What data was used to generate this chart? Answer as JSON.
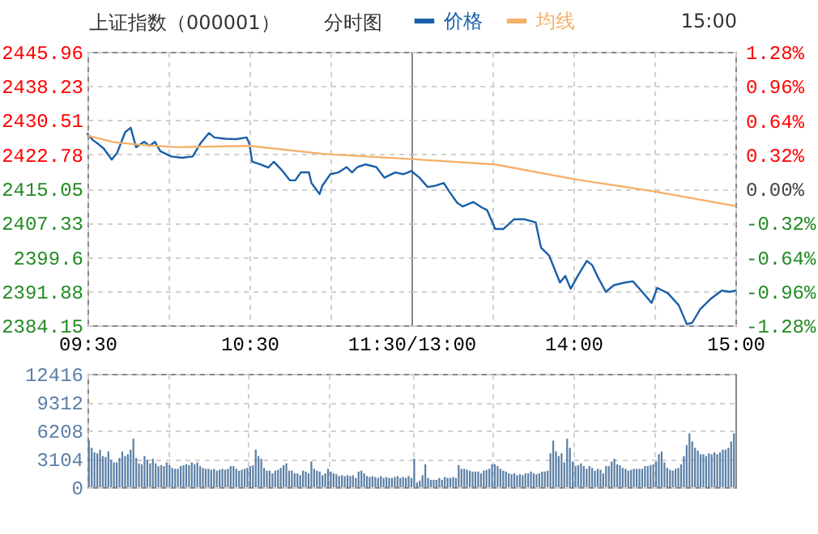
{
  "chart_data": [
    {
      "type": "line",
      "title": "上证指数（000001）",
      "subtitle": "分时图",
      "annotations": [
        "15:00"
      ],
      "legend": "top",
      "grid": true,
      "xlim": [
        9.5,
        11.5
      ],
      "xticks": [
        {
          "value": 9.5,
          "label": "09:30"
        },
        {
          "value": 10,
          "label": null
        },
        {
          "value": 10.5,
          "label": "10:30"
        },
        {
          "value": 11,
          "label": null
        },
        {
          "value": 11.5,
          "label": "11:30/13:00"
        }
      ],
      "ylim": [
        2384.15,
        2445.96
      ],
      "yticks": [
        2384.15,
        2391.88,
        2399.6,
        2407.33,
        2415.05,
        2422.78,
        2430.51,
        2438.23,
        2445.96
      ],
      "series": [
        {
          "name": "价格",
          "color": "#1a5fa8",
          "x": [
            9.5,
            9.533,
            9.567,
            9.6,
            9.65,
            9.683,
            9.733,
            9.767,
            9.8,
            9.85,
            9.883,
            9.917,
            9.95,
            10.017,
            10.083,
            10.15,
            10.2,
            10.25,
            10.283,
            10.35,
            10.417,
            10.483,
            10.5,
            10.517,
            10.567,
            10.617,
            10.65,
            10.7,
            10.75,
            10.783,
            10.817,
            10.867,
            10.883,
            10.933,
            10.95,
            11,
            11.05,
            11.1,
            11.133,
            11.167,
            11.217,
            11.283,
            11.333,
            11.4,
            11.45,
            11.5
          ],
          "values": [
            2427.4,
            2426.0,
            2425.1,
            2424.1,
            2421.6,
            2423.1,
            2427.8,
            2428.8,
            2424.4,
            2425.6,
            2424.7,
            2425.6,
            2423.5,
            2422.3,
            2422.0,
            2422.3,
            2425.4,
            2427.6,
            2426.6,
            2426.3,
            2426.2,
            2426.6,
            2425.1,
            2421.1,
            2420.5,
            2419.8,
            2421.1,
            2419.2,
            2416.9,
            2416.9,
            2418.7,
            2418.7,
            2416.3,
            2413.8,
            2415.7,
            2418.3,
            2418.7,
            2419.9,
            2418.7,
            2419.9,
            2420.5,
            2419.9,
            2417.5,
            2418.7,
            2418.3,
            2419.0
          ]
        },
        {
          "name": "均线",
          "color": "#f5b06a",
          "x": [
            9.5,
            9.667,
            9.833,
            10.05,
            10.5,
            10.95,
            11.5
          ],
          "values": [
            2427.0,
            2425.5,
            2424.9,
            2424.4,
            2424.7,
            2422.9,
            2421.7
          ]
        }
      ]
    },
    {
      "type": "line",
      "grid": true,
      "tick_labels": "x",
      "xlim": [
        13,
        15
      ],
      "xticks": [
        {
          "value": 13.5,
          "label": null
        },
        {
          "value": 14,
          "label": "14:00"
        },
        {
          "value": 14.5,
          "label": null
        },
        {
          "value": 15,
          "label": "15:00"
        }
      ],
      "ylim": [
        2384.15,
        2445.96
      ],
      "yticks": [
        2384.15,
        2391.88,
        2399.6,
        2407.33,
        2415.05,
        2422.78,
        2430.51,
        2438.23,
        2445.96
      ],
      "y2lim": [
        -1.28,
        1.28
      ],
      "y2ticks": [
        {
          "value": -1.28,
          "label": "-1.28%"
        },
        {
          "value": -0.96,
          "label": "-0.96%"
        },
        {
          "value": -0.64,
          "label": "-0.64%"
        },
        {
          "value": -0.32,
          "label": "-0.32%"
        },
        {
          "value": 0,
          "label": "0.00%"
        },
        {
          "value": 0.32,
          "label": "0.32%"
        },
        {
          "value": 0.64,
          "label": "0.64%"
        },
        {
          "value": 0.96,
          "label": "0.96%"
        },
        {
          "value": 1.28,
          "label": "1.28%"
        }
      ],
      "series": [
        {
          "color": "#1a5fa8",
          "x": [
            13,
            13.05,
            13.1,
            13.15,
            13.2,
            13.233,
            13.283,
            13.317,
            13.383,
            13.433,
            13.467,
            13.517,
            13.567,
            13.633,
            13.7,
            13.767,
            13.8,
            13.85,
            13.883,
            13.917,
            13.95,
            13.983,
            14.033,
            14.083,
            14.117,
            14.15,
            14.2,
            14.25,
            14.317,
            14.367,
            14.417,
            14.483,
            14.517,
            14.583,
            14.65,
            14.7,
            14.733,
            14.783,
            14.85,
            14.917,
            14.967,
            15
          ],
          "values": [
            2419.0,
            2417.5,
            2415.4,
            2415.7,
            2416.3,
            2414.4,
            2411.8,
            2411.0,
            2412.0,
            2410.8,
            2410.2,
            2405.9,
            2405.9,
            2408.1,
            2408.1,
            2407.4,
            2401.7,
            2399.9,
            2396.9,
            2393.8,
            2395.3,
            2392.4,
            2395.7,
            2398.7,
            2397.7,
            2395.1,
            2391.7,
            2393.2,
            2393.8,
            2394.1,
            2392.0,
            2389.2,
            2392.6,
            2391.4,
            2388.7,
            2384.4,
            2384.7,
            2387.8,
            2390.2,
            2392.0,
            2391.7,
            2392.0
          ]
        },
        {
          "color": "#f5b06a",
          "x": [
            13,
            13.517,
            14.017,
            14.5,
            15
          ],
          "values": [
            2421.7,
            2420.5,
            2417.1,
            2414.4,
            2411.1
          ]
        }
      ]
    },
    {
      "type": "bar",
      "color": "#5b7fa6",
      "grid": true,
      "tick_labels": "y",
      "ylim": [
        0,
        12416
      ],
      "yticks": [
        0,
        3104,
        6208,
        9312,
        12416
      ],
      "values": [
        5100,
        4300,
        3800,
        3700,
        4100,
        3400,
        3300,
        3900,
        3000,
        2700,
        2700,
        3200,
        3900,
        3400,
        3600,
        4100,
        5300,
        3200,
        2600,
        2500,
        3400,
        3000,
        2600,
        3100,
        2600,
        2300,
        2400,
        2300,
        2700,
        2400,
        2100,
        2000,
        2000,
        2300,
        2400,
        2500,
        2400,
        2700,
        2500,
        2700,
        2300,
        2100,
        2000,
        2000,
        1900,
        2000,
        1800,
        1900,
        2000,
        1900,
        2000,
        2300,
        2300,
        2000,
        1800,
        1900,
        2000,
        2100,
        2300,
        2400,
        4100,
        3400,
        3100,
        2100,
        1800,
        1800,
        1500,
        1800,
        1900,
        2100,
        2400,
        2600,
        1800,
        1800,
        1500,
        1500,
        1300,
        1800,
        1700,
        1500,
        2800,
        2000,
        1800,
        1700,
        1300,
        1500,
        2000,
        1700,
        1500,
        1400,
        1200,
        1300,
        1200,
        1300,
        1200,
        1300,
        1000,
        1700,
        1800,
        1500,
        1200,
        1100,
        1200,
        1100,
        1000,
        1200,
        1000,
        1100,
        1000,
        1000,
        1100,
        1200,
        1000,
        1100,
        1000,
        1200,
        1000,
        3100,
        500,
        700,
        1300,
        2500,
        1000,
        800,
        800,
        800,
        1000,
        800,
        1100,
        1000,
        1000,
        1100,
        1000,
        2400,
        2000,
        2000,
        1900,
        1800,
        1700,
        1700,
        1700,
        1500,
        1800,
        1900,
        2000,
        2500,
        2500,
        2300,
        2000,
        1800,
        1700,
        1500,
        1400,
        1500,
        1300,
        1400,
        1300,
        1500,
        1500,
        1700,
        1500,
        1400,
        1500,
        1700,
        1700,
        1800,
        3700,
        5100,
        3900,
        3400,
        3700,
        2700,
        5300,
        4300,
        2800,
        2300,
        2400,
        2600,
        2300,
        2000,
        2300,
        2100,
        1800,
        2000,
        1900,
        1500,
        2300,
        2300,
        2800,
        3100,
        2500,
        2400,
        2100,
        2000,
        1800,
        1900,
        2000,
        2000,
        2000,
        2000,
        2300,
        2300,
        2400,
        2500,
        2800,
        3600,
        3900,
        2700,
        2100,
        1900,
        1800,
        2000,
        2100,
        2500,
        3400,
        4600,
        5900,
        5000,
        4300,
        4000,
        3600,
        3600,
        3400,
        3700,
        3600,
        3800,
        3600,
        3800,
        4100,
        4100,
        4300,
        5000,
        5900
      ],
      "categories": [
        null,
        null,
        null,
        null,
        null,
        null,
        null,
        null,
        null,
        null,
        null,
        null,
        null,
        null,
        null,
        null,
        null,
        null,
        null,
        null,
        null,
        null,
        null,
        null,
        null,
        null,
        null,
        null,
        null,
        null,
        null,
        null,
        null,
        null,
        null,
        null,
        null,
        null,
        null,
        null,
        null,
        null,
        null,
        null,
        null,
        null,
        null,
        null,
        null,
        null,
        null,
        null,
        null,
        null,
        null,
        null,
        null,
        null,
        null,
        null,
        null,
        null,
        null,
        null,
        null,
        null,
        null,
        null,
        null,
        null,
        null,
        null,
        null,
        null,
        null,
        null,
        null,
        null,
        null,
        null,
        null,
        null,
        null,
        null,
        null,
        null,
        null,
        null,
        null,
        null,
        null,
        null,
        null,
        null,
        null,
        null,
        null,
        null,
        null,
        null,
        null,
        null,
        null,
        null,
        null,
        null,
        null,
        null,
        null,
        null,
        null,
        null,
        null,
        null,
        null,
        null,
        null,
        null,
        null,
        null,
        null,
        null,
        null,
        null,
        null,
        null,
        null,
        null,
        null,
        null,
        null,
        null,
        null,
        null,
        null,
        null,
        null,
        null,
        null,
        null,
        null,
        null,
        null,
        null,
        null,
        null,
        null,
        null,
        null,
        null,
        null,
        null,
        null,
        null,
        null,
        null,
        null,
        null,
        null,
        null,
        null,
        null,
        null,
        null,
        null,
        null,
        null,
        null,
        null,
        null,
        null,
        null,
        null,
        null,
        null,
        null,
        null,
        null,
        null,
        null,
        null,
        null,
        null,
        null,
        null,
        null,
        null,
        null,
        null,
        null,
        null,
        null,
        null,
        null,
        null,
        null,
        null,
        null,
        null,
        null,
        null,
        null,
        null,
        null,
        null,
        null,
        null,
        null,
        null,
        null,
        null,
        null,
        null,
        null,
        null,
        null,
        null,
        null,
        null,
        null,
        null,
        null,
        null,
        null,
        null,
        null,
        null,
        null,
        null,
        null,
        null,
        null,
        null
      ]
    }
  ]
}
